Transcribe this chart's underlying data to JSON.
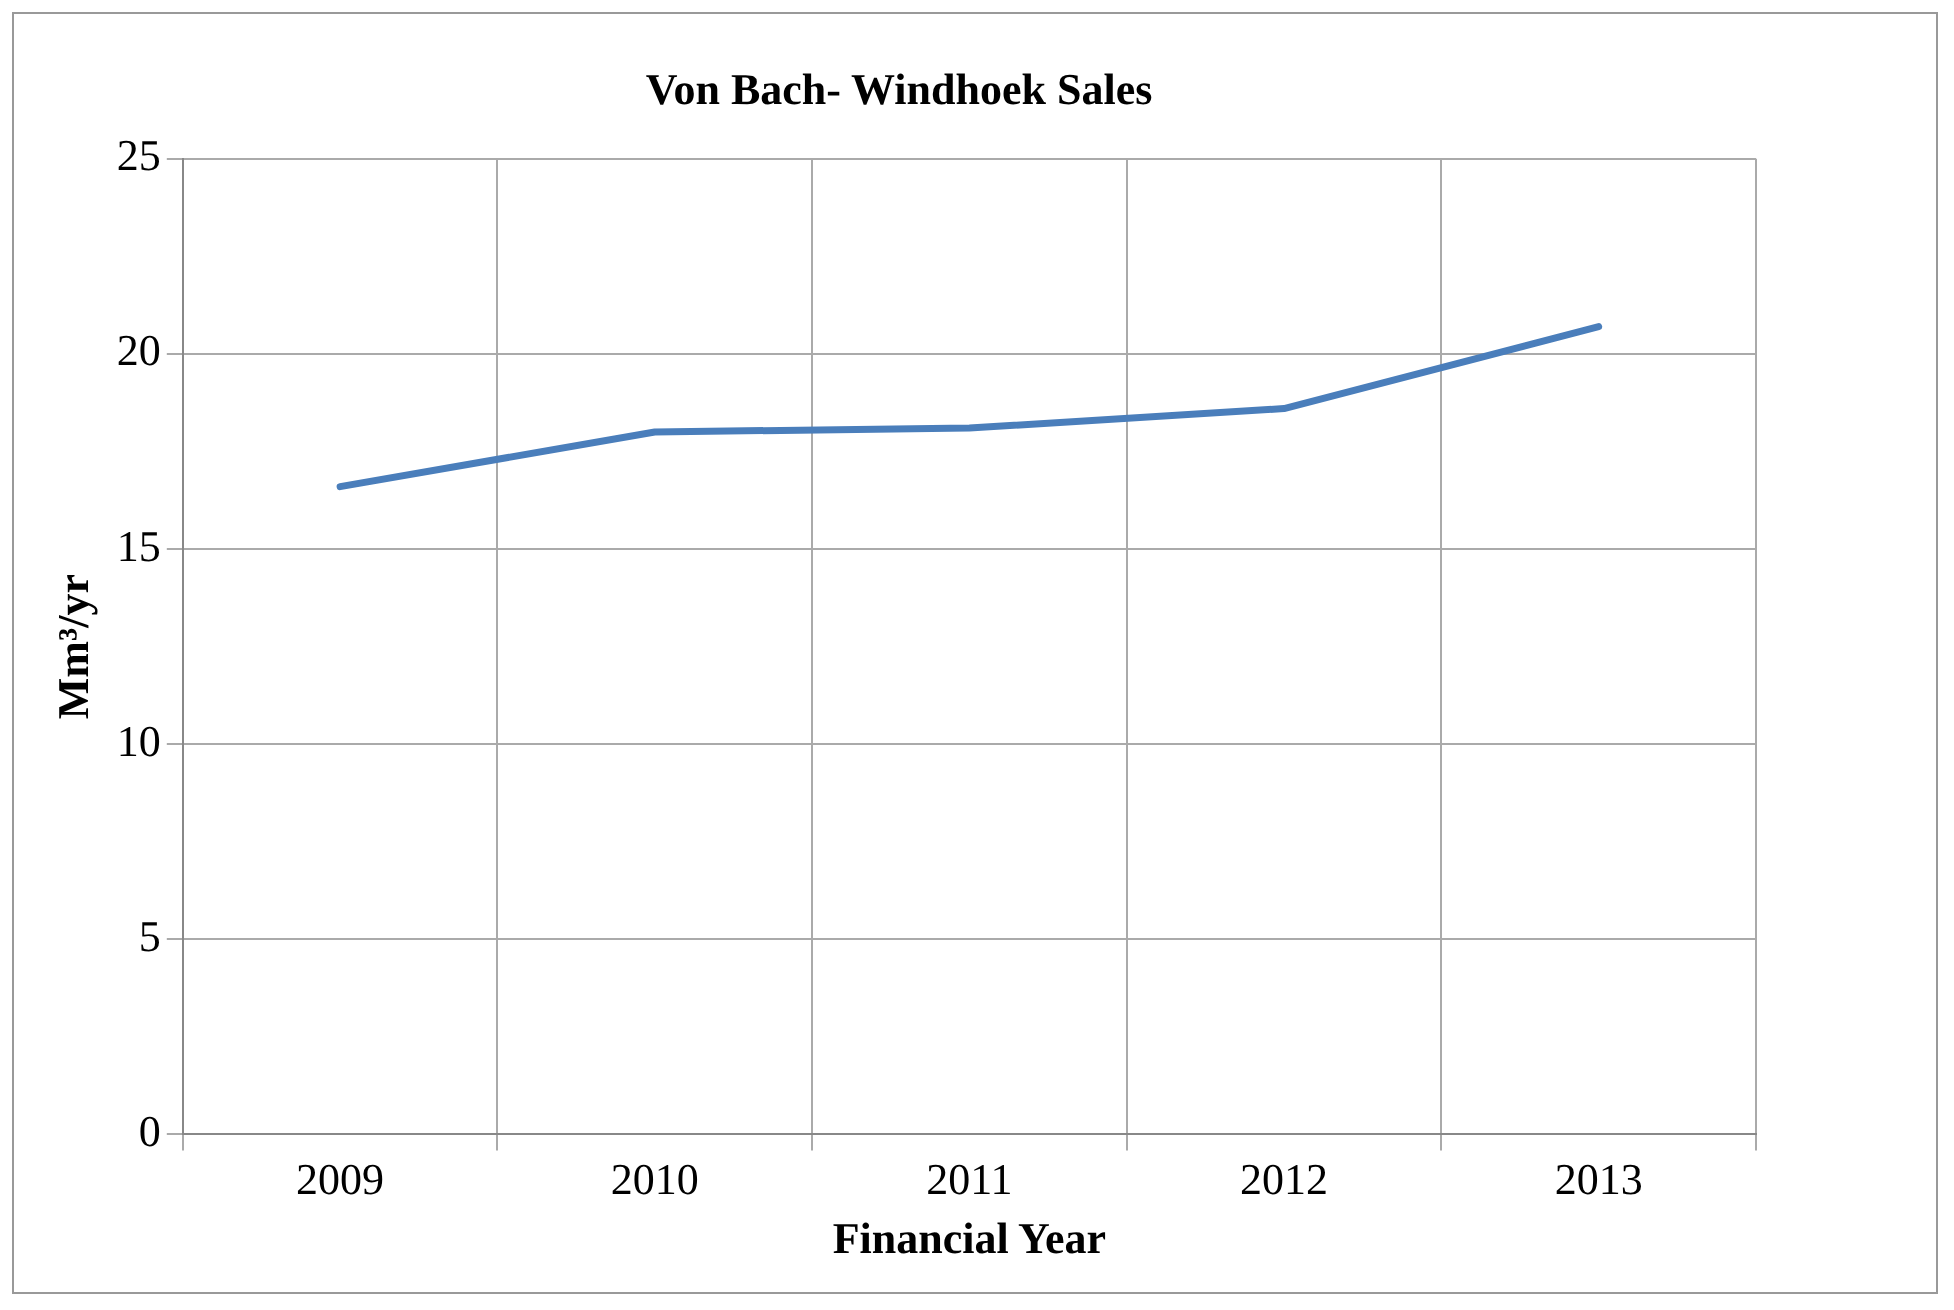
{
  "chart_data": {
    "type": "line",
    "title": "Von Bach- Windhoek Sales",
    "xlabel": "Financial Year",
    "ylabel": "Mm³/yr",
    "categories": [
      "2009",
      "2010",
      "2011",
      "2012",
      "2013"
    ],
    "series": [
      {
        "color": "#4a7ebb",
        "values": [
          16.6,
          18.0,
          18.1,
          18.6,
          20.7
        ]
      }
    ],
    "ylim": [
      0,
      25
    ],
    "yticks": [
      0,
      5,
      10,
      15,
      20,
      25
    ],
    "grid": true,
    "legend": false,
    "marker": "none",
    "line_style": "solid"
  }
}
